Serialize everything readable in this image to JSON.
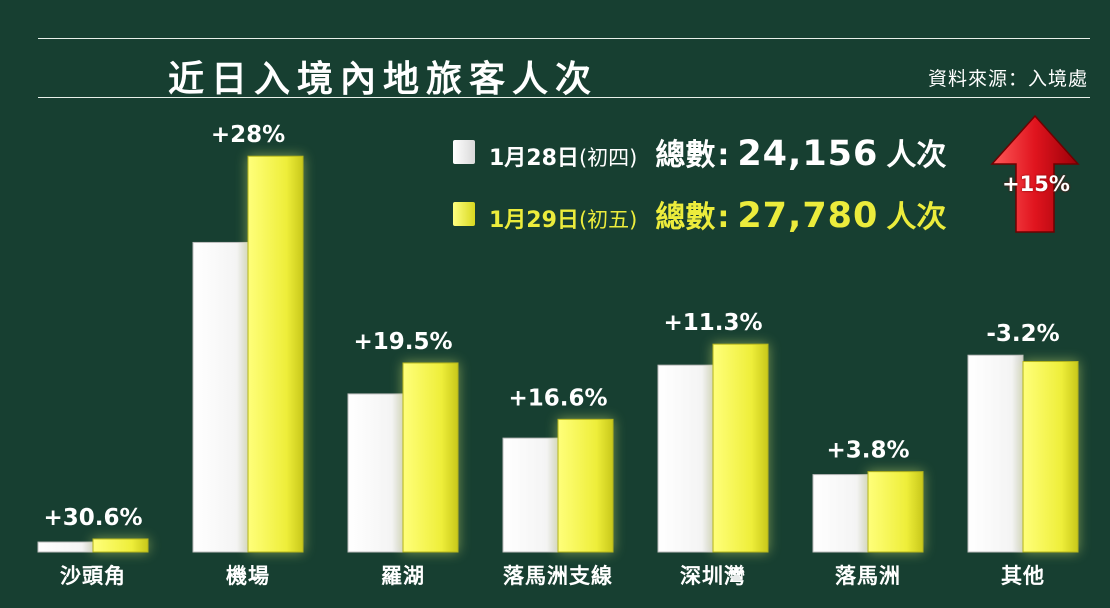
{
  "title": "近日入境內地旅客人次",
  "source": "資料來源：入境處",
  "legend": [
    {
      "swatch": "white",
      "date": "1月28日",
      "day": "(初四)",
      "total_label": "總數",
      "total": "24,156",
      "unit": "人次"
    },
    {
      "swatch": "yellow",
      "date": "1月29日",
      "day": "(初五)",
      "total_label": "總數",
      "total": "27,780",
      "unit": "人次"
    }
  ],
  "overall_change": "+15%",
  "colors": {
    "background": "#173f31",
    "series1": "#ffffff",
    "series2": "#ecec3c",
    "arrow": "#e0141e",
    "text": "#ffffff"
  },
  "chart_data": {
    "type": "bar",
    "title": "近日入境內地旅客人次",
    "categories": [
      "沙頭角",
      "機場",
      "羅湖",
      "落馬洲支線",
      "深圳灣",
      "落馬洲",
      "其他"
    ],
    "series": [
      {
        "name": "1月28日(初四)",
        "values": [
          90,
          2800,
          1430,
          1030,
          1690,
          700,
          1780
        ]
      },
      {
        "name": "1月29日(初五)",
        "values": [
          118,
          3580,
          1710,
          1200,
          1880,
          727,
          1723
        ]
      }
    ],
    "change_labels": [
      "+30.6%",
      "+28%",
      "+19.5%",
      "+16.6%",
      "+11.3%",
      "+3.8%",
      "-3.2%"
    ],
    "ylim": [
      0,
      3600
    ],
    "grid": false,
    "legend_position": "top-right"
  }
}
